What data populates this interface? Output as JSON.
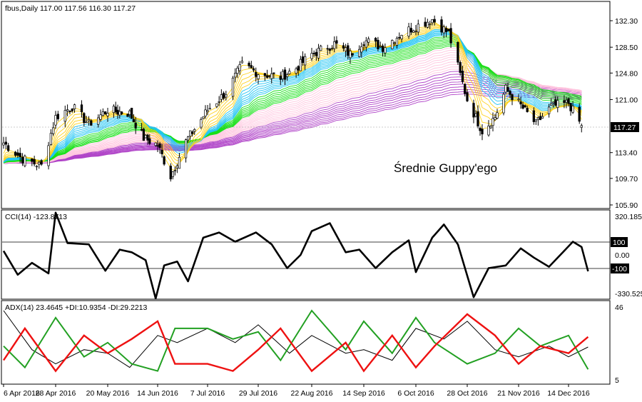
{
  "main_panel": {
    "header": "fbus,Daily  117.00 117.56 116.30 117.27",
    "annotation": "Średnie Guppy'ego",
    "price_labels": [
      "132.30",
      "128.50",
      "124.80",
      "121.00",
      "113.40",
      "109.70",
      "105.90"
    ],
    "current_price": "117.27",
    "colors": {
      "up_candle": "#ffffff",
      "down_candle": "#000000",
      "ribbon_short": [
        "#ffd21e",
        "#22c5f3",
        "#18e018"
      ],
      "ribbon_long": [
        "#ffc6df",
        "#b044c8"
      ]
    }
  },
  "cci_panel": {
    "header": "CCI(14) -123.8713",
    "levels": [
      "320.1858",
      "100",
      "0.00",
      "-100",
      "-330.525"
    ]
  },
  "adx_panel": {
    "header": "ADX(14) 23.4645 +DI:10.9354 -DI:29.2213",
    "levels": [
      "46",
      "5"
    ],
    "colors": {
      "adx": "#000000",
      "plus_di": "#22a022",
      "minus_di": "#ee1111"
    }
  },
  "x_axis": {
    "labels": [
      "6 Apr 2016",
      "28 Apr 2016",
      "20 May 2016",
      "14 Jun 2016",
      "7 Jul 2016",
      "29 Jul 2016",
      "22 Aug 2016",
      "14 Sep 2016",
      "6 Oct 2016",
      "28 Oct 2016",
      "21 Nov 2016",
      "14 Dec 2016"
    ]
  },
  "chart_data": [
    {
      "type": "candlestick",
      "title": "fbus,Daily",
      "ohlc_last": {
        "open": 117.0,
        "high": 117.56,
        "low": 116.3,
        "close": 117.27
      },
      "ylim": [
        105.9,
        134.0
      ],
      "close_path": [
        [
          "6 Apr 2016",
          114.8
        ],
        [
          "14 Apr 2016",
          112.5
        ],
        [
          "22 Apr 2016",
          111.5
        ],
        [
          "28 Apr 2016",
          118.5
        ],
        [
          "5 May 2016",
          120.0
        ],
        [
          "12 May 2016",
          117.5
        ],
        [
          "20 May 2016",
          119.5
        ],
        [
          "31 May 2016",
          119.0
        ],
        [
          "7 Jun 2016",
          115.5
        ],
        [
          "14 Jun 2016",
          114.5
        ],
        [
          "20 Jun 2016",
          110.0
        ],
        [
          "27 Jun 2016",
          115.0
        ],
        [
          "7 Jul 2016",
          119.5
        ],
        [
          "15 Jul 2016",
          122.0
        ],
        [
          "22 Jul 2016",
          126.0
        ],
        [
          "29 Jul 2016",
          124.8
        ],
        [
          "8 Aug 2016",
          124.2
        ],
        [
          "15 Aug 2016",
          125.5
        ],
        [
          "22 Aug 2016",
          127.5
        ],
        [
          "1 Sep 2016",
          129.0
        ],
        [
          "8 Sep 2016",
          127.5
        ],
        [
          "14 Sep 2016",
          129.5
        ],
        [
          "22 Sep 2016",
          128.5
        ],
        [
          "30 Sep 2016",
          130.5
        ],
        [
          "6 Oct 2016",
          131.5
        ],
        [
          "13 Oct 2016",
          132.5
        ],
        [
          "20 Oct 2016",
          130.5
        ],
        [
          "28 Oct 2016",
          121.0
        ],
        [
          "4 Nov 2016",
          116.5
        ],
        [
          "10 Nov 2016",
          118.5
        ],
        [
          "15 Nov 2016",
          122.5
        ],
        [
          "21 Nov 2016",
          120.5
        ],
        [
          "29 Nov 2016",
          117.5
        ],
        [
          "6 Dec 2016",
          120.0
        ],
        [
          "14 Dec 2016",
          120.5
        ],
        [
          "20 Dec 2016",
          117.27
        ]
      ]
    },
    {
      "type": "line",
      "title": "CCI(14)",
      "last_value": -123.8713,
      "levels": [
        100,
        0,
        -100
      ],
      "ylim": [
        -330.525,
        320.1858
      ],
      "series": [
        {
          "name": "CCI(14)",
          "values": [
            [
              "6 Apr 2016",
              30
            ],
            [
              "12 Apr 2016",
              -150
            ],
            [
              "18 Apr 2016",
              -60
            ],
            [
              "25 Apr 2016",
              -140
            ],
            [
              "28 Apr 2016",
              320
            ],
            [
              "3 May 2016",
              90
            ],
            [
              "12 May 2016",
              80
            ],
            [
              "19 May 2016",
              -120
            ],
            [
              "26 May 2016",
              40
            ],
            [
              "1 Jun 2016",
              20
            ],
            [
              "8 Jun 2016",
              -40
            ],
            [
              "13 Jun 2016",
              -330
            ],
            [
              "17 Jun 2016",
              -80
            ],
            [
              "23 Jun 2016",
              -50
            ],
            [
              "28 Jun 2016",
              -200
            ],
            [
              "5 Jul 2016",
              130
            ],
            [
              "12 Jul 2016",
              170
            ],
            [
              "19 Jul 2016",
              100
            ],
            [
              "28 Jul 2016",
              170
            ],
            [
              "4 Aug 2016",
              80
            ],
            [
              "11 Aug 2016",
              -100
            ],
            [
              "17 Aug 2016",
              0
            ],
            [
              "22 Aug 2016",
              180
            ],
            [
              "30 Aug 2016",
              240
            ],
            [
              "6 Sep 2016",
              20
            ],
            [
              "12 Sep 2016",
              40
            ],
            [
              "19 Sep 2016",
              -100
            ],
            [
              "26 Sep 2016",
              20
            ],
            [
              "3 Oct 2016",
              110
            ],
            [
              "6 Oct 2016",
              -130
            ],
            [
              "13 Oct 2016",
              130
            ],
            [
              "18 Oct 2016",
              230
            ],
            [
              "24 Oct 2016",
              80
            ],
            [
              "31 Oct 2016",
              -320
            ],
            [
              "7 Nov 2016",
              -100
            ],
            [
              "15 Nov 2016",
              -80
            ],
            [
              "22 Nov 2016",
              50
            ],
            [
              "28 Nov 2016",
              -20
            ],
            [
              "5 Dec 2016",
              -90
            ],
            [
              "12 Dec 2016",
              30
            ],
            [
              "16 Dec 2016",
              100
            ],
            [
              "20 Dec 2016",
              60
            ],
            [
              "23 Dec 2016",
              -124
            ]
          ]
        }
      ]
    },
    {
      "type": "line",
      "title": "ADX(14)",
      "ylim": [
        5,
        46
      ],
      "series": [
        {
          "name": "ADX(14)",
          "last_value": 23.4645,
          "values": [
            [
              "6 Apr 2016",
              44
            ],
            [
              "18 Apr 2016",
              22
            ],
            [
              "28 Apr 2016",
              14
            ],
            [
              "10 May 2016",
              22
            ],
            [
              "20 May 2016",
              20
            ],
            [
              "31 May 2016",
              12
            ],
            [
              "14 Jun 2016",
              30
            ],
            [
              "23 Jun 2016",
              26
            ],
            [
              "7 Jul 2016",
              34
            ],
            [
              "19 Jul 2016",
              26
            ],
            [
              "29 Jul 2016",
              36
            ],
            [
              "12 Aug 2016",
              20
            ],
            [
              "22 Aug 2016",
              30
            ],
            [
              "6 Sep 2016",
              20
            ],
            [
              "14 Sep 2016",
              22
            ],
            [
              "26 Sep 2016",
              16
            ],
            [
              "6 Oct 2016",
              34
            ],
            [
              "18 Oct 2016",
              28
            ],
            [
              "28 Oct 2016",
              38
            ],
            [
              "10 Nov 2016",
              22
            ],
            [
              "21 Nov 2016",
              18
            ],
            [
              "5 Dec 2016",
              24
            ],
            [
              "14 Dec 2016",
              18
            ],
            [
              "23 Dec 2016",
              23.5
            ]
          ]
        },
        {
          "name": "+DI",
          "last_value": 10.9354,
          "values": [
            [
              "6 Apr 2016",
              24
            ],
            [
              "15 Apr 2016",
              12
            ],
            [
              "28 Apr 2016",
              40
            ],
            [
              "10 May 2016",
              18
            ],
            [
              "20 May 2016",
              26
            ],
            [
              "1 Jun 2016",
              14
            ],
            [
              "14 Jun 2016",
              10
            ],
            [
              "22 Jun 2016",
              34
            ],
            [
              "7 Jul 2016",
              34
            ],
            [
              "18 Jul 2016",
              28
            ],
            [
              "29 Jul 2016",
              32
            ],
            [
              "8 Aug 2016",
              16
            ],
            [
              "22 Aug 2016",
              44
            ],
            [
              "6 Sep 2016",
              22
            ],
            [
              "14 Sep 2016",
              38
            ],
            [
              "26 Sep 2016",
              20
            ],
            [
              "6 Oct 2016",
              40
            ],
            [
              "14 Oct 2016",
              26
            ],
            [
              "28 Oct 2016",
              14
            ],
            [
              "10 Nov 2016",
              20
            ],
            [
              "21 Nov 2016",
              34
            ],
            [
              "1 Dec 2016",
              24
            ],
            [
              "14 Dec 2016",
              30
            ],
            [
              "23 Dec 2016",
              10.9
            ]
          ]
        },
        {
          "name": "-DI",
          "last_value": 29.2213,
          "values": [
            [
              "6 Apr 2016",
              16
            ],
            [
              "15 Apr 2016",
              34
            ],
            [
              "28 Apr 2016",
              10
            ],
            [
              "10 May 2016",
              30
            ],
            [
              "20 May 2016",
              20
            ],
            [
              "1 Jun 2016",
              28
            ],
            [
              "14 Jun 2016",
              38
            ],
            [
              "22 Jun 2016",
              14
            ],
            [
              "7 Jul 2016",
              14
            ],
            [
              "18 Jul 2016",
              10
            ],
            [
              "29 Jul 2016",
              22
            ],
            [
              "8 Aug 2016",
              34
            ],
            [
              "22 Aug 2016",
              10
            ],
            [
              "6 Sep 2016",
              26
            ],
            [
              "14 Sep 2016",
              10
            ],
            [
              "26 Sep 2016",
              30
            ],
            [
              "6 Oct 2016",
              12
            ],
            [
              "14 Oct 2016",
              24
            ],
            [
              "28 Oct 2016",
              42
            ],
            [
              "10 Nov 2016",
              30
            ],
            [
              "21 Nov 2016",
              14
            ],
            [
              "1 Dec 2016",
              24
            ],
            [
              "14 Dec 2016",
              20
            ],
            [
              "23 Dec 2016",
              29.2
            ]
          ]
        }
      ]
    }
  ]
}
